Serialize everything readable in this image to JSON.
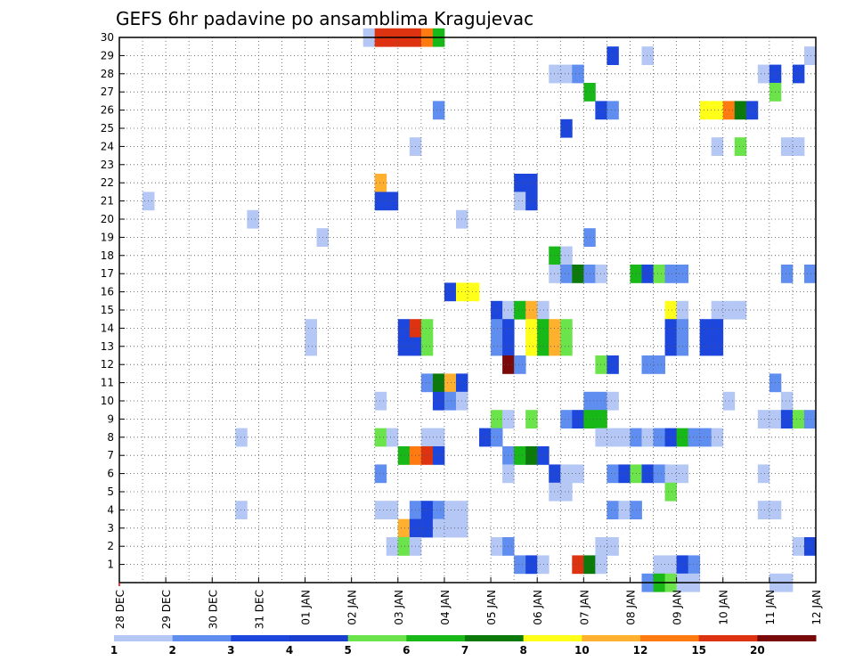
{
  "chart_data": {
    "type": "heatmap",
    "title": "GEFS 6hr padavine po ansamblima Kragujevac",
    "xlabel": "",
    "ylabel": "",
    "x_ticks": [
      "28 DEC",
      "29 DEC",
      "30 DEC",
      "31 DEC",
      "01 JAN",
      "02 JAN",
      "03 JAN",
      "04 JAN",
      "05 JAN",
      "06 JAN",
      "07 JAN",
      "08 JAN",
      "09 JAN",
      "10 JAN",
      "11 JAN",
      "12 JAN"
    ],
    "y_ticks": [
      "1",
      "2",
      "3",
      "4",
      "5",
      "6",
      "7",
      "8",
      "9",
      "10",
      "11",
      "12",
      "13",
      "14",
      "15",
      "16",
      "17",
      "18",
      "19",
      "20",
      "21",
      "22",
      "23",
      "24",
      "25",
      "26",
      "27",
      "28",
      "29",
      "30"
    ],
    "x_range": [
      0,
      60
    ],
    "y_range": [
      0,
      30
    ],
    "x_unit": "6-hour steps from 28 DEC",
    "y_unit": "ensemble member",
    "legend": {
      "position": "bottom",
      "levels": [
        "1",
        "2",
        "3",
        "4",
        "5",
        "6",
        "7",
        "8",
        "10",
        "12",
        "15",
        "20"
      ],
      "colors": [
        "#b4c7f5",
        "#5f8ef0",
        "#1c46dc",
        "#1a3fd0",
        "#6be34a",
        "#17b817",
        "#0b7a0b",
        "#ffff1a",
        "#ffb02e",
        "#ff7a10",
        "#dd3310",
        "#7a0a0a"
      ]
    },
    "cells": [
      [
        21.5,
        30,
        1
      ],
      [
        22.5,
        30,
        15
      ],
      [
        23.5,
        30,
        15
      ],
      [
        24.5,
        30,
        15
      ],
      [
        25.5,
        30,
        15
      ],
      [
        26.5,
        30,
        12
      ],
      [
        27.5,
        30,
        6
      ],
      [
        42.5,
        29,
        3
      ],
      [
        45.5,
        29,
        1
      ],
      [
        59.5,
        29,
        1
      ],
      [
        37.5,
        28,
        1
      ],
      [
        38.5,
        28,
        1
      ],
      [
        39.5,
        28,
        2
      ],
      [
        55.5,
        28,
        1
      ],
      [
        56.5,
        28,
        3
      ],
      [
        58.5,
        28,
        3
      ],
      [
        40.5,
        27,
        6
      ],
      [
        56.5,
        27,
        5
      ],
      [
        27.5,
        26,
        2
      ],
      [
        41.5,
        26,
        3
      ],
      [
        42.5,
        26,
        2
      ],
      [
        50.5,
        26,
        8
      ],
      [
        51.5,
        26,
        8
      ],
      [
        52.5,
        26,
        12
      ],
      [
        53.5,
        26,
        7
      ],
      [
        54.5,
        26,
        3
      ],
      [
        38.5,
        25,
        3
      ],
      [
        25.5,
        24,
        1
      ],
      [
        51.5,
        24,
        1
      ],
      [
        53.5,
        24,
        5
      ],
      [
        57.5,
        24,
        1
      ],
      [
        58.5,
        24,
        1
      ],
      [
        22.5,
        22,
        10
      ],
      [
        34.5,
        22,
        3
      ],
      [
        35.5,
        22,
        3
      ],
      [
        2.5,
        21,
        1
      ],
      [
        22.5,
        21,
        3
      ],
      [
        23.5,
        21,
        3
      ],
      [
        34.5,
        21,
        1
      ],
      [
        35.5,
        21,
        3
      ],
      [
        11.5,
        20,
        1
      ],
      [
        29.5,
        20,
        1
      ],
      [
        17.5,
        19,
        1
      ],
      [
        40.5,
        19,
        2
      ],
      [
        37.5,
        18,
        6
      ],
      [
        38.5,
        18,
        1
      ],
      [
        37.5,
        17,
        1
      ],
      [
        38.5,
        17,
        2
      ],
      [
        39.5,
        17,
        7
      ],
      [
        40.5,
        17,
        2
      ],
      [
        41.5,
        17,
        1
      ],
      [
        44.5,
        17,
        6
      ],
      [
        45.5,
        17,
        3
      ],
      [
        46.5,
        17,
        5
      ],
      [
        47.5,
        17,
        2
      ],
      [
        48.5,
        17,
        2
      ],
      [
        57.5,
        17,
        2
      ],
      [
        59.5,
        17,
        2
      ],
      [
        28.5,
        16,
        3
      ],
      [
        29.5,
        16,
        8
      ],
      [
        30.5,
        16,
        8
      ],
      [
        32.5,
        15,
        3
      ],
      [
        33.5,
        15,
        1
      ],
      [
        34.5,
        15,
        6
      ],
      [
        35.5,
        15,
        10
      ],
      [
        36.5,
        15,
        1
      ],
      [
        47.5,
        15,
        8
      ],
      [
        48.5,
        15,
        1
      ],
      [
        51.5,
        15,
        1
      ],
      [
        52.5,
        15,
        1
      ],
      [
        53.5,
        15,
        1
      ],
      [
        16.5,
        14,
        1
      ],
      [
        24.5,
        14,
        3
      ],
      [
        25.5,
        14,
        15
      ],
      [
        26.5,
        14,
        5
      ],
      [
        32.5,
        14,
        2
      ],
      [
        33.5,
        14,
        3
      ],
      [
        35.5,
        14,
        8
      ],
      [
        36.5,
        14,
        6
      ],
      [
        37.5,
        14,
        10
      ],
      [
        38.5,
        14,
        5
      ],
      [
        47.5,
        14,
        3
      ],
      [
        48.5,
        14,
        2
      ],
      [
        50.5,
        14,
        3
      ],
      [
        51.5,
        14,
        3
      ],
      [
        16.5,
        13,
        1
      ],
      [
        24.5,
        13,
        3
      ],
      [
        25.5,
        13,
        3
      ],
      [
        26.5,
        13,
        5
      ],
      [
        32.5,
        13,
        2
      ],
      [
        33.5,
        13,
        3
      ],
      [
        35.5,
        13,
        8
      ],
      [
        36.5,
        13,
        6
      ],
      [
        37.5,
        13,
        10
      ],
      [
        38.5,
        13,
        5
      ],
      [
        47.5,
        13,
        3
      ],
      [
        48.5,
        13,
        2
      ],
      [
        50.5,
        13,
        3
      ],
      [
        51.5,
        13,
        3
      ],
      [
        33.5,
        12,
        20
      ],
      [
        34.5,
        12,
        2
      ],
      [
        41.5,
        12,
        5
      ],
      [
        42.5,
        12,
        3
      ],
      [
        45.5,
        12,
        2
      ],
      [
        46.5,
        12,
        2
      ],
      [
        26.5,
        11,
        2
      ],
      [
        27.5,
        11,
        7
      ],
      [
        28.5,
        11,
        10
      ],
      [
        29.5,
        11,
        3
      ],
      [
        56.5,
        11,
        2
      ],
      [
        22.5,
        10,
        1
      ],
      [
        27.5,
        10,
        3
      ],
      [
        28.5,
        10,
        2
      ],
      [
        29.5,
        10,
        1
      ],
      [
        40.5,
        10,
        2
      ],
      [
        41.5,
        10,
        2
      ],
      [
        42.5,
        10,
        1
      ],
      [
        52.5,
        10,
        1
      ],
      [
        57.5,
        10,
        1
      ],
      [
        32.5,
        9,
        5
      ],
      [
        33.5,
        9,
        1
      ],
      [
        35.5,
        9,
        5
      ],
      [
        38.5,
        9,
        2
      ],
      [
        39.5,
        9,
        3
      ],
      [
        40.5,
        9,
        6
      ],
      [
        41.5,
        9,
        6
      ],
      [
        55.5,
        9,
        1
      ],
      [
        56.5,
        9,
        1
      ],
      [
        57.5,
        9,
        3
      ],
      [
        58.5,
        9,
        5
      ],
      [
        59.5,
        9,
        2
      ],
      [
        10.5,
        8,
        1
      ],
      [
        22.5,
        8,
        5
      ],
      [
        23.5,
        8,
        1
      ],
      [
        26.5,
        8,
        1
      ],
      [
        27.5,
        8,
        1
      ],
      [
        31.5,
        8,
        3
      ],
      [
        32.5,
        8,
        2
      ],
      [
        41.5,
        8,
        1
      ],
      [
        42.5,
        8,
        1
      ],
      [
        43.5,
        8,
        1
      ],
      [
        44.5,
        8,
        2
      ],
      [
        45.5,
        8,
        1
      ],
      [
        46.5,
        8,
        2
      ],
      [
        47.5,
        8,
        3
      ],
      [
        48.5,
        8,
        6
      ],
      [
        49.5,
        8,
        2
      ],
      [
        50.5,
        8,
        2
      ],
      [
        51.5,
        8,
        1
      ],
      [
        24.5,
        7,
        6
      ],
      [
        25.5,
        7,
        12
      ],
      [
        26.5,
        7,
        15
      ],
      [
        27.5,
        7,
        3
      ],
      [
        33.5,
        7,
        2
      ],
      [
        34.5,
        7,
        6
      ],
      [
        35.5,
        7,
        7
      ],
      [
        36.5,
        7,
        3
      ],
      [
        22.5,
        6,
        2
      ],
      [
        33.5,
        6,
        1
      ],
      [
        37.5,
        6,
        3
      ],
      [
        38.5,
        6,
        1
      ],
      [
        39.5,
        6,
        1
      ],
      [
        42.5,
        6,
        2
      ],
      [
        43.5,
        6,
        3
      ],
      [
        44.5,
        6,
        5
      ],
      [
        45.5,
        6,
        3
      ],
      [
        46.5,
        6,
        2
      ],
      [
        47.5,
        6,
        1
      ],
      [
        48.5,
        6,
        1
      ],
      [
        55.5,
        6,
        1
      ],
      [
        37.5,
        5,
        1
      ],
      [
        38.5,
        5,
        1
      ],
      [
        47.5,
        5,
        5
      ],
      [
        10.5,
        4,
        1
      ],
      [
        22.5,
        4,
        1
      ],
      [
        23.5,
        4,
        1
      ],
      [
        25.5,
        4,
        2
      ],
      [
        26.5,
        4,
        3
      ],
      [
        27.5,
        4,
        2
      ],
      [
        28.5,
        4,
        1
      ],
      [
        29.5,
        4,
        1
      ],
      [
        42.5,
        4,
        2
      ],
      [
        43.5,
        4,
        1
      ],
      [
        44.5,
        4,
        2
      ],
      [
        55.5,
        4,
        1
      ],
      [
        56.5,
        4,
        1
      ],
      [
        24.5,
        3,
        10
      ],
      [
        25.5,
        3,
        3
      ],
      [
        26.5,
        3,
        3
      ],
      [
        27.5,
        3,
        1
      ],
      [
        28.5,
        3,
        1
      ],
      [
        29.5,
        3,
        1
      ],
      [
        23.5,
        2,
        1
      ],
      [
        24.5,
        2,
        5
      ],
      [
        25.5,
        2,
        1
      ],
      [
        32.5,
        2,
        1
      ],
      [
        33.5,
        2,
        2
      ],
      [
        41.5,
        2,
        1
      ],
      [
        42.5,
        2,
        1
      ],
      [
        58.5,
        2,
        1
      ],
      [
        59.5,
        2,
        3
      ],
      [
        34.5,
        1,
        2
      ],
      [
        35.5,
        1,
        3
      ],
      [
        36.5,
        1,
        1
      ],
      [
        39.5,
        1,
        15
      ],
      [
        40.5,
        1,
        7
      ],
      [
        41.5,
        1,
        1
      ],
      [
        46.5,
        1,
        1
      ],
      [
        47.5,
        1,
        1
      ],
      [
        48.5,
        1,
        3
      ],
      [
        49.5,
        1,
        2
      ],
      [
        45.5,
        0,
        2
      ],
      [
        46.5,
        0,
        6
      ],
      [
        47.5,
        0,
        5
      ],
      [
        48.5,
        0,
        1
      ],
      [
        49.5,
        0,
        1
      ],
      [
        56.5,
        0,
        1
      ],
      [
        57.5,
        0,
        1
      ]
    ]
  }
}
